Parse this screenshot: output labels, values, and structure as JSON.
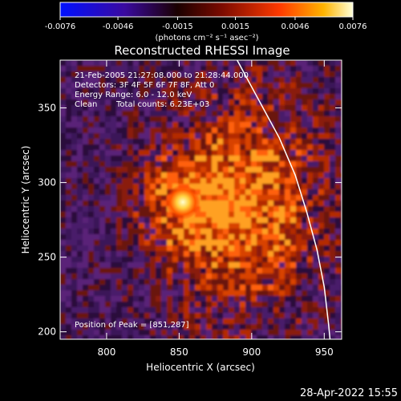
{
  "colorbar": {
    "ticks": [
      "-0.0076",
      "-0.0046",
      "-0.0015",
      "0.0015",
      "0.0046",
      "0.0076"
    ],
    "unit_label": "(photons cm⁻² s⁻¹ asec⁻²)",
    "colormap_stops": [
      "#0010ff",
      "#3a0aa0",
      "#1a0000",
      "#7a0a00",
      "#ff3a00",
      "#ffb400",
      "#ffffd8"
    ]
  },
  "info": {
    "time": "21-Feb-2005 21:27:08.000 to 21:28:44.000",
    "detectors": "Detectors: 3F 4F 5F 6F 7F 8F, Att 0",
    "energy": "Energy Range: 6.0 - 12.0 keV",
    "clean": "Clean",
    "counts": "Total counts: 6.23E+03"
  },
  "peak_label": "Position of Peak = [851,287]",
  "timestamp": "28-Apr-2022 15:55",
  "chart_data": {
    "type": "heatmap",
    "title": "Reconstructed RHESSI Image",
    "xlabel": "Heliocentric X (arcsec)",
    "ylabel": "Heliocentric Y (arcsec)",
    "xlim": [
      768,
      962
    ],
    "ylim": [
      195,
      382
    ],
    "xticks": [
      "800",
      "850",
      "900",
      "950"
    ],
    "yticks": [
      "200",
      "250",
      "300",
      "350"
    ],
    "clim": [
      -0.0076,
      0.0076
    ],
    "peak": [
      851,
      287
    ],
    "limb_curve": [
      [
        890,
        382
      ],
      [
        905,
        355
      ],
      [
        919,
        330
      ],
      [
        930,
        305
      ],
      [
        938,
        280
      ],
      [
        945,
        255
      ],
      [
        950,
        230
      ],
      [
        953,
        205
      ],
      [
        954,
        195
      ]
    ]
  }
}
